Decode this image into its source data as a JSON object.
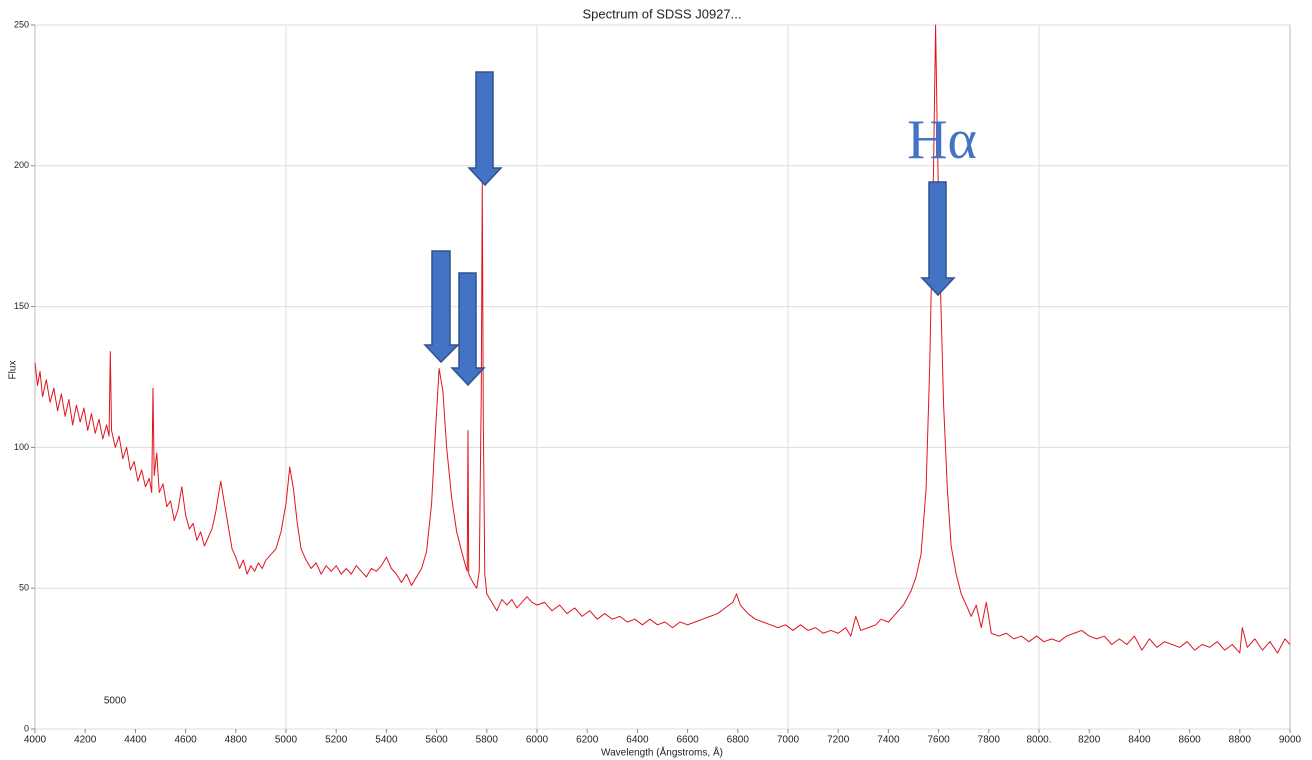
{
  "chart_data": {
    "type": "line",
    "title": "Spectrum of SDSS J0927...",
    "x_label": "Wavelength (Ångstroms, Å)",
    "y_label": "Flux",
    "color": "#e0141e",
    "annotations": [
      "Hα",
      "5000"
    ],
    "xlim": [
      4000,
      9000
    ],
    "ylim": [
      0,
      250
    ],
    "xticks": [
      4000,
      4200,
      4400,
      4600,
      4800,
      5000,
      5200,
      5400,
      5600,
      5800,
      6000,
      6200,
      6400,
      6600,
      6800,
      7000,
      7200,
      7400,
      7600,
      7800,
      {
        "value": 8000,
        "label": "8000."
      },
      8200,
      8400,
      8600,
      8800,
      9000
    ],
    "yticks": [
      0,
      50,
      100,
      150,
      200,
      250
    ],
    "xgrid": [
      5000,
      6000,
      7000,
      8000
    ],
    "grid": true,
    "x": [
      4000,
      4010,
      4020,
      4030,
      4045,
      4060,
      4075,
      4090,
      4105,
      4120,
      4135,
      4150,
      4165,
      4180,
      4195,
      4210,
      4225,
      4240,
      4255,
      4270,
      4285,
      4295,
      4300,
      4305,
      4320,
      4335,
      4350,
      4365,
      4380,
      4395,
      4410,
      4425,
      4440,
      4455,
      4465,
      4470,
      4475,
      4485,
      4495,
      4510,
      4525,
      4540,
      4555,
      4570,
      4585,
      4600,
      4615,
      4630,
      4645,
      4660,
      4675,
      4690,
      4705,
      4720,
      4740,
      4755,
      4770,
      4785,
      4800,
      4815,
      4830,
      4845,
      4860,
      4875,
      4890,
      4905,
      4920,
      4940,
      4960,
      4980,
      5000,
      5015,
      5030,
      5045,
      5060,
      5080,
      5100,
      5120,
      5140,
      5160,
      5180,
      5200,
      5220,
      5240,
      5260,
      5280,
      5300,
      5320,
      5340,
      5360,
      5380,
      5400,
      5420,
      5440,
      5460,
      5480,
      5500,
      5520,
      5540,
      5560,
      5580,
      5595,
      5610,
      5625,
      5640,
      5660,
      5680,
      5700,
      5715,
      5722,
      5725,
      5728,
      5745,
      5760,
      5770,
      5778,
      5782,
      5786,
      5792,
      5800,
      5820,
      5840,
      5860,
      5880,
      5900,
      5920,
      5940,
      5960,
      5980,
      6000,
      6030,
      6060,
      6090,
      6120,
      6150,
      6180,
      6210,
      6240,
      6270,
      6300,
      6330,
      6360,
      6390,
      6420,
      6450,
      6480,
      6510,
      6540,
      6570,
      6600,
      6630,
      6660,
      6690,
      6720,
      6750,
      6780,
      6795,
      6810,
      6840,
      6870,
      6900,
      6930,
      6960,
      6990,
      7020,
      7050,
      7080,
      7110,
      7140,
      7170,
      7200,
      7230,
      7250,
      7270,
      7290,
      7320,
      7350,
      7370,
      7400,
      7430,
      7460,
      7490,
      7510,
      7530,
      7550,
      7565,
      7580,
      7588,
      7595,
      7605,
      7620,
      7635,
      7650,
      7670,
      7690,
      7710,
      7730,
      7750,
      7770,
      7790,
      7810,
      7840,
      7870,
      7900,
      7930,
      7960,
      7990,
      8020,
      8050,
      8080,
      8110,
      8140,
      8170,
      8200,
      8230,
      8260,
      8290,
      8320,
      8350,
      8380,
      8410,
      8440,
      8470,
      8500,
      8530,
      8560,
      8590,
      8620,
      8650,
      8680,
      8710,
      8740,
      8770,
      8800,
      8810,
      8830,
      8860,
      8890,
      8920,
      8950,
      8980,
      9000
    ],
    "values": [
      130,
      122,
      127,
      118,
      124,
      116,
      121,
      113,
      119,
      111,
      117,
      108,
      115,
      109,
      114,
      106,
      112,
      105,
      110,
      103,
      108,
      104,
      134,
      106,
      100,
      104,
      96,
      100,
      92,
      95,
      88,
      92,
      86,
      89,
      84,
      121,
      90,
      98,
      84,
      87,
      79,
      81,
      74,
      78,
      86,
      76,
      71,
      73,
      67,
      70,
      65,
      68,
      71,
      77,
      88,
      80,
      72,
      64,
      61,
      57,
      60,
      55,
      58,
      56,
      59,
      57,
      60,
      62,
      64,
      70,
      80,
      93,
      85,
      73,
      64,
      60,
      57,
      59,
      55,
      58,
      56,
      58,
      55,
      57,
      55,
      58,
      56,
      54,
      57,
      56,
      58,
      61,
      57,
      55,
      52,
      55,
      51,
      54,
      57,
      63,
      80,
      105,
      128,
      120,
      100,
      82,
      70,
      63,
      58,
      56,
      106,
      55,
      52,
      50,
      56,
      120,
      194,
      110,
      55,
      48,
      45,
      42,
      46,
      44,
      46,
      43,
      45,
      47,
      45,
      44,
      45,
      42,
      44,
      41,
      43,
      40,
      42,
      39,
      41,
      39,
      40,
      38,
      39,
      37,
      39,
      37,
      38,
      36,
      38,
      37,
      38,
      39,
      40,
      41,
      43,
      45,
      48,
      44,
      41,
      39,
      38,
      37,
      36,
      37,
      35,
      37,
      35,
      36,
      34,
      35,
      34,
      36,
      33,
      40,
      35,
      36,
      37,
      39,
      38,
      41,
      44,
      49,
      54,
      62,
      85,
      130,
      200,
      250,
      210,
      165,
      115,
      85,
      65,
      55,
      48,
      44,
      40,
      44,
      36,
      45,
      34,
      33,
      34,
      32,
      33,
      31,
      33,
      31,
      32,
      31,
      33,
      34,
      35,
      33,
      32,
      33,
      30,
      32,
      30,
      33,
      28,
      32,
      29,
      31,
      30,
      29,
      31,
      28,
      30,
      29,
      31,
      28,
      30,
      27,
      36,
      29,
      32,
      28,
      31,
      27,
      32,
      30
    ]
  }
}
